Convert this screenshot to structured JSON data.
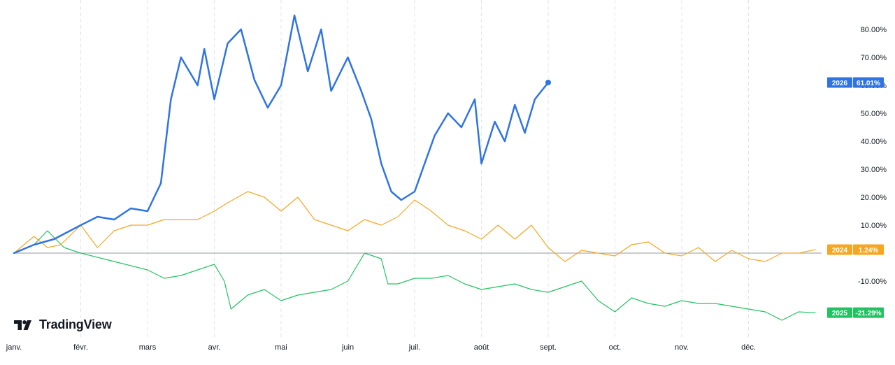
{
  "brand": {
    "name": "TradingView",
    "logo_icon": "tradingview-logo-icon"
  },
  "chart_data": {
    "type": "line",
    "x_labels": [
      "janv.",
      "févr.",
      "mars",
      "avr.",
      "mai",
      "juin",
      "juil.",
      "août",
      "sept.",
      "oct.",
      "nov.",
      "déc."
    ],
    "y_ticks": [
      "80.00%",
      "70.00%",
      "60.00%",
      "50.00%",
      "40.00%",
      "30.00%",
      "20.00%",
      "10.00%",
      "-10.00%"
    ],
    "ylim": [
      -25,
      85
    ],
    "y_unit": "%",
    "grid": "vertical",
    "baseline": 0,
    "series": [
      {
        "name": "2026",
        "color": "#2f74e3",
        "last_value": "61.01%",
        "end_marker": true,
        "x": [
          0,
          0.3,
          0.6,
          1,
          1.25,
          1.5,
          1.75,
          2,
          2.2,
          2.35,
          2.5,
          2.75,
          2.85,
          3,
          3.2,
          3.4,
          3.6,
          3.8,
          4,
          4.2,
          4.4,
          4.6,
          4.75,
          5,
          5.2,
          5.35,
          5.5,
          5.65,
          5.8,
          6,
          6.15,
          6.3,
          6.5,
          6.7,
          6.9,
          7,
          7.2,
          7.35,
          7.5,
          7.65,
          7.8,
          8
        ],
        "y": [
          0,
          3,
          5,
          10,
          13,
          12,
          16,
          15,
          25,
          55,
          70,
          60,
          73,
          55,
          75,
          80,
          62,
          52,
          60,
          85,
          65,
          80,
          58,
          70,
          58,
          48,
          32,
          22,
          19,
          22,
          32,
          42,
          50,
          45,
          55,
          32,
          47,
          40,
          53,
          43,
          55,
          61
        ]
      },
      {
        "name": "2024",
        "color": "#f5a623",
        "last_value": "1.24%",
        "end_marker": false,
        "x": [
          0,
          0.3,
          0.5,
          0.7,
          1,
          1.25,
          1.5,
          1.75,
          2,
          2.25,
          2.5,
          2.75,
          3,
          3.2,
          3.5,
          3.75,
          4,
          4.25,
          4.5,
          4.75,
          5,
          5.25,
          5.5,
          5.75,
          6,
          6.25,
          6.5,
          6.75,
          7,
          7.25,
          7.5,
          7.75,
          8,
          8.25,
          8.5,
          8.75,
          9,
          9.25,
          9.5,
          9.75,
          10,
          10.25,
          10.5,
          10.75,
          11,
          11.25,
          11.5,
          11.75,
          12
        ],
        "y": [
          0,
          6,
          2,
          3,
          10,
          2,
          8,
          10,
          10,
          12,
          12,
          12,
          15,
          18,
          22,
          20,
          15,
          20,
          12,
          10,
          8,
          12,
          10,
          13,
          19,
          15,
          10,
          8,
          5,
          10,
          5,
          10,
          2,
          -3,
          1,
          0,
          -1,
          3,
          4,
          0,
          -1,
          2,
          -3,
          1,
          -2,
          -3,
          0,
          0,
          1.24
        ]
      },
      {
        "name": "2025",
        "color": "#21c362",
        "last_value": "-21.29%",
        "end_marker": false,
        "x": [
          0,
          0.3,
          0.5,
          0.75,
          1,
          1.5,
          2,
          2.25,
          2.5,
          2.75,
          3,
          3.15,
          3.25,
          3.5,
          3.75,
          4,
          4.25,
          4.5,
          4.75,
          5,
          5.25,
          5.5,
          5.6,
          5.75,
          6,
          6.25,
          6.5,
          6.75,
          7,
          7.25,
          7.5,
          7.75,
          8,
          8.25,
          8.5,
          8.75,
          9,
          9.25,
          9.5,
          9.75,
          10,
          10.25,
          10.5,
          10.75,
          11,
          11.25,
          11.5,
          11.75,
          12
        ],
        "y": [
          0,
          3,
          8,
          2,
          0,
          -3,
          -6,
          -9,
          -8,
          -6,
          -4,
          -10,
          -20,
          -15,
          -13,
          -17,
          -15,
          -14,
          -13,
          -10,
          0,
          -2,
          -11,
          -11,
          -9,
          -9,
          -8,
          -11,
          -13,
          -12,
          -11,
          -13,
          -14,
          -12,
          -10,
          -17,
          -21,
          -16,
          -18,
          -19,
          -17,
          -18,
          -18,
          -19,
          -20,
          -21,
          -24,
          -21,
          -21.29
        ]
      }
    ]
  }
}
